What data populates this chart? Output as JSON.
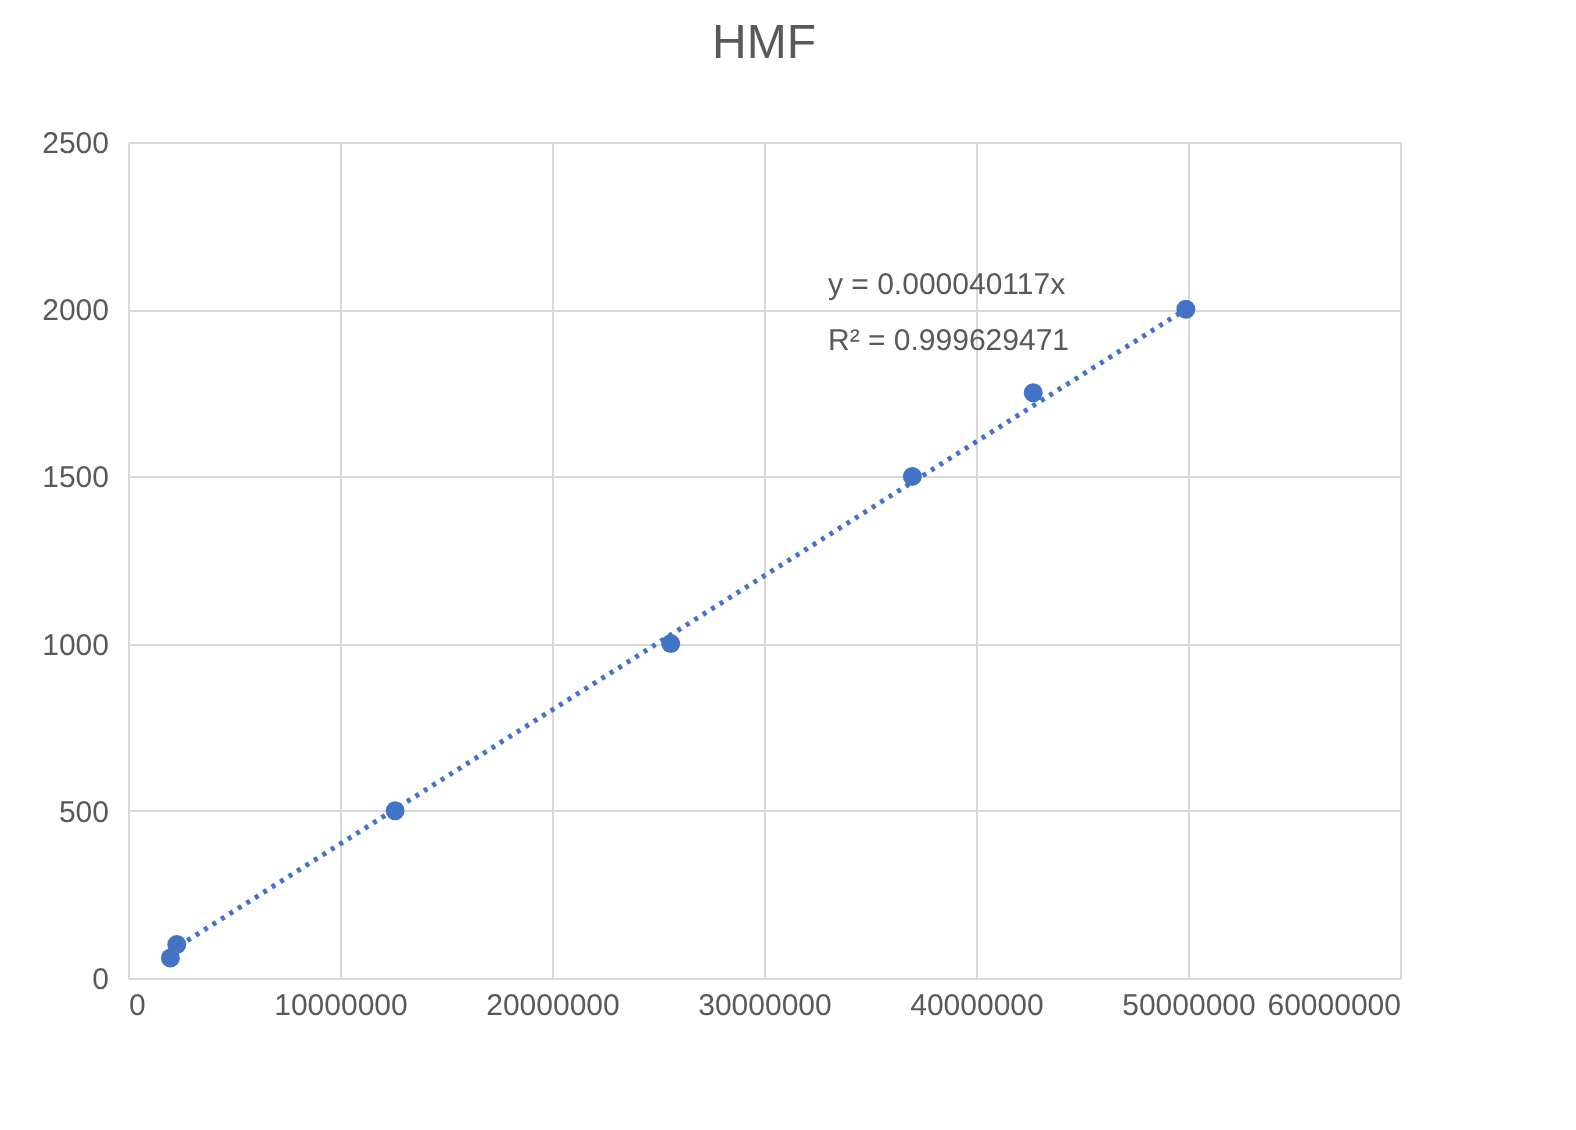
{
  "chart_data": {
    "type": "scatter",
    "title": "HMF",
    "x": [
      2000000,
      2300000,
      12600000,
      25600000,
      37000000,
      42700000,
      49900000
    ],
    "series": [
      {
        "color": "#4472c4",
        "marker": "circle",
        "values": [
          60,
          100,
          500,
          1000,
          1500,
          1750,
          2000
        ]
      },
      {
        "type": "line",
        "color": "#4472c4",
        "line_style": "dotted",
        "marker": "none",
        "x": [
          2000000,
          49900000
        ],
        "values": [
          80,
          2000
        ]
      }
    ],
    "xlim": [
      0,
      60000000
    ],
    "xticks": [
      0,
      10000000,
      20000000,
      30000000,
      40000000,
      50000000,
      60000000
    ],
    "ylim": [
      0,
      2500
    ],
    "yticks": [
      0,
      500,
      1000,
      1500,
      2000,
      2500
    ],
    "grid": true,
    "annotations": [
      "y = 0.000040117x",
      "R² = 0.999629471"
    ]
  }
}
